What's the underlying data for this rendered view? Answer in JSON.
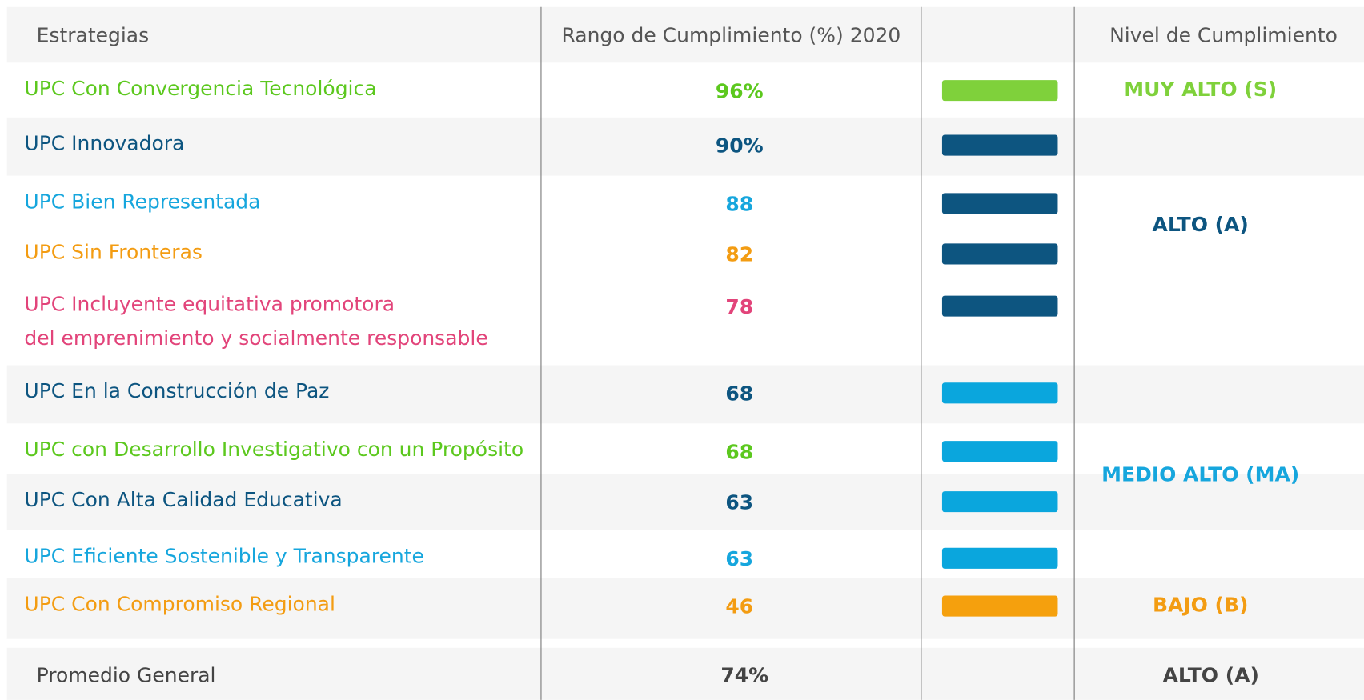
{
  "table": {
    "header": [
      "Estrategias",
      "Rango de Cumplimiento (%) 2020",
      "Nivel de Cumplimiento"
    ],
    "rows": [
      {
        "lines": [
          "UPC Con Convergencia Tecnológica"
        ],
        "value": "96%",
        "color": "#5cc81e",
        "bar_color": "#7fd13b"
      },
      {
        "lines": [
          "UPC Innovadora"
        ],
        "value": "90%",
        "color": "#0d5580",
        "bar_color": "#0d5580"
      },
      {
        "lines": [
          "UPC Bien Representada"
        ],
        "value": "88",
        "color": "#16a6dd",
        "bar_color": "#0d5580"
      },
      {
        "lines": [
          "UPC Sin Fronteras"
        ],
        "value": "82",
        "color": "#f39c12",
        "bar_color": "#0d5580"
      },
      {
        "lines": [
          "UPC Incluyente equitativa promotora",
          "del emprenimiento y socialmente responsable"
        ],
        "value": "78",
        "color": "#e2447a",
        "bar_color": "#0d5580"
      },
      {
        "lines": [
          "UPC En la Construcción de Paz"
        ],
        "value": "68",
        "color": "#0d5580",
        "bar_color": "#0aa6dd"
      },
      {
        "lines": [
          "UPC con Desarrollo Investigativo con un Propósito"
        ],
        "value": "68",
        "color": "#5cc81e",
        "bar_color": "#0aa6dd"
      },
      {
        "lines": [
          "UPC Con Alta Calidad Educativa"
        ],
        "value": "63",
        "color": "#0d5580",
        "bar_color": "#0aa6dd"
      },
      {
        "lines": [
          "UPC Eficiente Sostenible y Transparente"
        ],
        "value": "63",
        "color": "#16a6dd",
        "bar_color": "#0aa6dd"
      },
      {
        "lines": [
          "UPC Con Compromiso Regional"
        ],
        "value": "46",
        "color": "#f39c12",
        "bar_color": "#f5a00d"
      }
    ],
    "levels": [
      {
        "label": "MUY ALTO (S)",
        "rows": [
          0,
          0
        ],
        "color": "#7fd13b"
      },
      {
        "label": "ALTO (A)",
        "rows": [
          1,
          4
        ],
        "color": "#0d5580"
      },
      {
        "label": "MEDIO ALTO (MA)",
        "rows": [
          5,
          8
        ],
        "color": "#16a6dd"
      },
      {
        "label": "BAJO (B)",
        "rows": [
          9,
          9
        ],
        "color": "#f39c12"
      }
    ],
    "footer": {
      "label": "Promedio General",
      "value": "74%",
      "level": "ALTO (A)"
    }
  }
}
